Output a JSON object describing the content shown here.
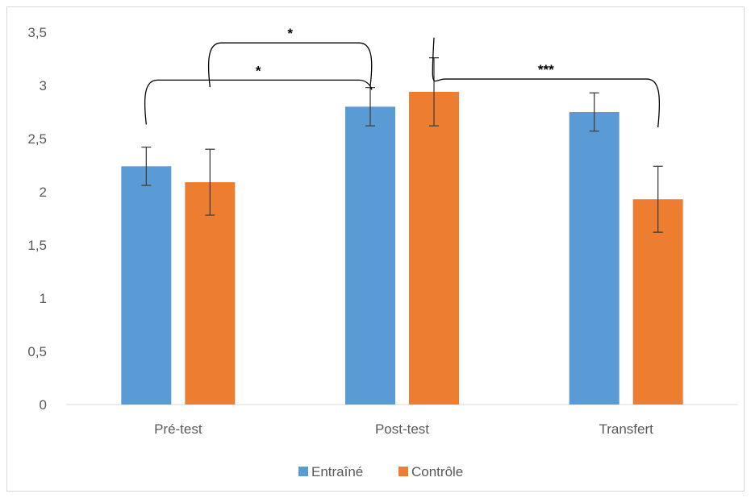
{
  "chart_data": {
    "type": "bar",
    "categories": [
      "Pré-test",
      "Post-test",
      "Transfert"
    ],
    "series": [
      {
        "name": "Entraîné",
        "color": "#5B9BD5",
        "values": [
          2.24,
          2.8,
          2.75
        ],
        "errors": [
          0.18,
          0.18,
          0.18
        ]
      },
      {
        "name": "Contrôle",
        "color": "#ED7D31",
        "values": [
          2.09,
          2.94,
          1.93
        ],
        "errors": [
          0.31,
          0.32,
          0.31
        ]
      }
    ],
    "ylim": [
      0,
      3.5
    ],
    "yticks": [
      "0",
      "0,5",
      "1",
      "1,5",
      "2",
      "2,5",
      "3",
      "3,5"
    ],
    "ytick_values": [
      0,
      0.5,
      1,
      1.5,
      2,
      2.5,
      3,
      3.5
    ],
    "grid": false,
    "legend_position": "bottom",
    "title": "",
    "xlabel": "",
    "ylabel": "",
    "significance": [
      {
        "label": "*",
        "from": [
          0,
          0
        ],
        "to": [
          1,
          0
        ],
        "level": 3.05
      },
      {
        "label": "*",
        "from": [
          0,
          1
        ],
        "to": [
          1,
          0
        ],
        "level": 3.4
      },
      {
        "label": "***",
        "from": [
          1,
          1
        ],
        "to": [
          2,
          1
        ],
        "level": 3.06
      }
    ]
  }
}
